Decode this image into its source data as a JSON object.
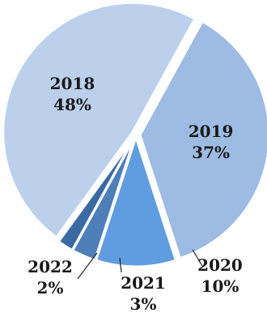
{
  "chart_data": {
    "type": "pie",
    "title": "",
    "slices": [
      {
        "label": "2018",
        "percent_label": "48%",
        "value": 48,
        "color": "#bcd0ec",
        "label_position": "inside"
      },
      {
        "label": "2019",
        "percent_label": "37%",
        "value": 37,
        "color": "#9dbbe3",
        "label_position": "inside"
      },
      {
        "label": "2020",
        "percent_label": "10%",
        "value": 10,
        "color": "#5f9de0",
        "label_position": "outside"
      },
      {
        "label": "2021",
        "percent_label": "3%",
        "value": 3,
        "color": "#4f7fb8",
        "label_position": "outside"
      },
      {
        "label": "2022",
        "percent_label": "2%",
        "value": 2,
        "color": "#3b6aa2",
        "label_position": "outside"
      }
    ]
  }
}
